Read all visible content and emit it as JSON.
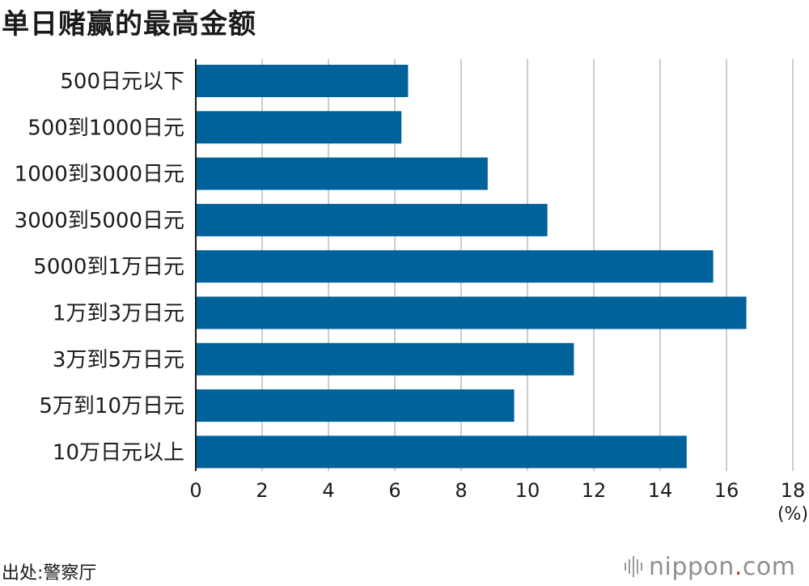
{
  "title": "单日赌赢的最高金额",
  "source": "出处:警察厅",
  "logo": {
    "word": "nippon",
    "dot": ".",
    "tld": "com"
  },
  "colors": {
    "bar": "#00629b",
    "grid": "#cccccc",
    "axis": "#1a1a1a"
  },
  "chart_data": {
    "type": "bar",
    "orientation": "horizontal",
    "categories": [
      "500日元以下",
      "500到1000日元",
      "1000到3000日元",
      "3000到5000日元",
      "5000到1万日元",
      "1万到3万日元",
      "3万到5万日元",
      "5万到10万日元",
      "10万日元以上"
    ],
    "values": [
      6.4,
      6.2,
      8.8,
      10.6,
      15.6,
      16.6,
      11.4,
      9.6,
      14.8
    ],
    "xlim": [
      0,
      18
    ],
    "xticks": [
      0,
      2,
      4,
      6,
      8,
      10,
      12,
      14,
      16,
      18
    ],
    "xunit": "(%)",
    "grid": true
  }
}
